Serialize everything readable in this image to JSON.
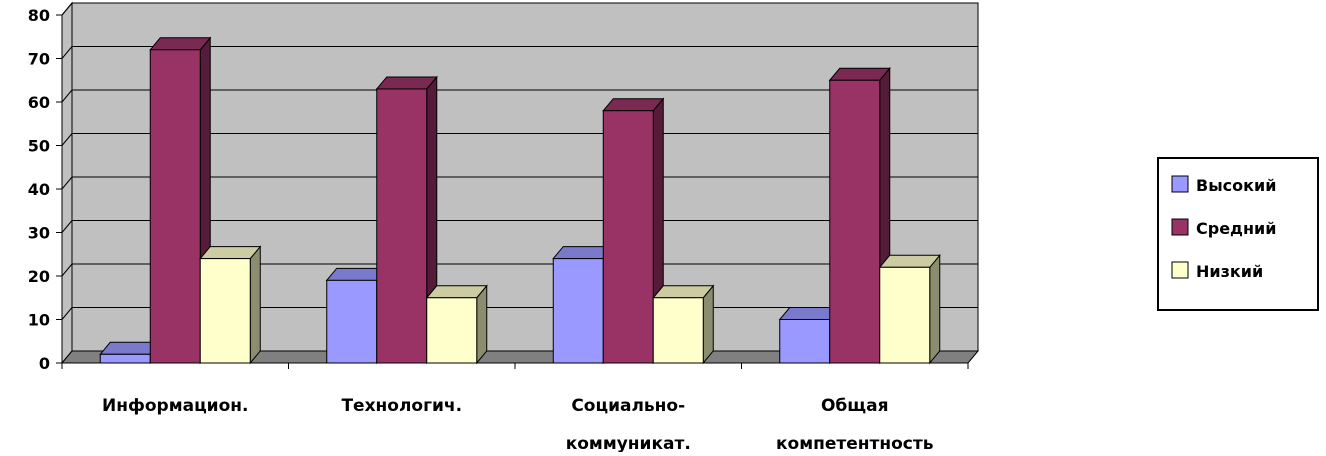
{
  "chart_data": {
    "type": "bar",
    "categories": [
      [
        "Информацион."
      ],
      [
        "Технологич."
      ],
      [
        "Социально-",
        "коммуникат."
      ],
      [
        "Общая",
        "компетентность"
      ]
    ],
    "series": [
      {
        "name": "Высокий",
        "values": [
          2,
          19,
          24,
          10
        ],
        "color": "#9999ff"
      },
      {
        "name": "Средний",
        "values": [
          72,
          63,
          58,
          65
        ],
        "color": "#993366"
      },
      {
        "name": "Низкий",
        "values": [
          24,
          15,
          15,
          22
        ],
        "color": "#ffffcc"
      }
    ],
    "ylim": [
      0,
      80
    ],
    "yticks": [
      0,
      10,
      20,
      30,
      40,
      50,
      60,
      70,
      80
    ],
    "title": "",
    "xlabel": "",
    "ylabel": "",
    "grid": true,
    "legend_position": "right",
    "wall_color": "#c0c0c0",
    "floor_color": "#808080"
  }
}
